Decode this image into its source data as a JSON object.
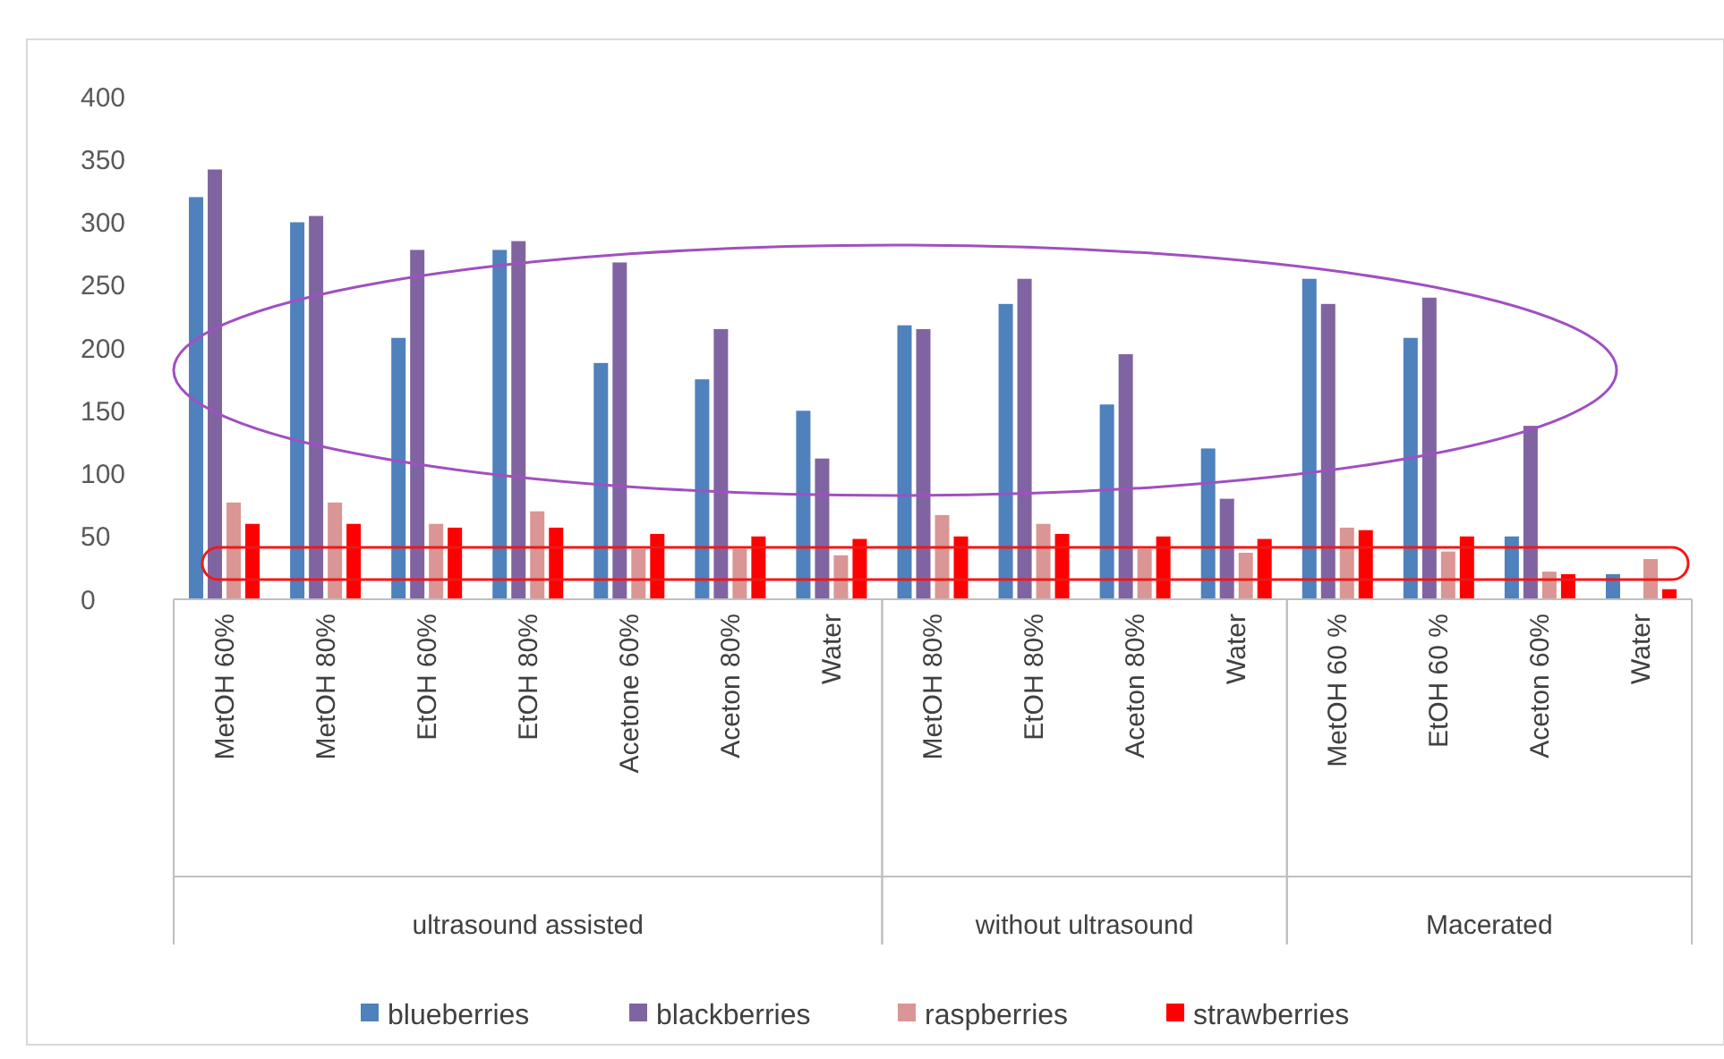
{
  "chart_data": [
    {
      "type": "bar",
      "xlabel": "ultrasound assisted",
      "categories": [
        "MetOH 60%",
        "MetOH 80%",
        "EtOH 60%",
        "EtOH 80%",
        "Acetone 60%",
        "Aceton 80%",
        "Water"
      ],
      "series": [
        {
          "name": "blueberries",
          "color": "#4f81bd",
          "values": [
            320,
            300,
            208,
            278,
            188,
            175,
            150
          ]
        },
        {
          "name": "blackberries",
          "color": "#8064a2",
          "values": [
            342,
            305,
            278,
            285,
            268,
            215,
            112
          ]
        },
        {
          "name": "raspberries",
          "color": "#d99694",
          "values": [
            77,
            77,
            60,
            70,
            40,
            40,
            35
          ]
        },
        {
          "name": "strawberries",
          "color": "#ff0000",
          "values": [
            60,
            60,
            57,
            57,
            52,
            50,
            48
          ]
        }
      ],
      "ylim": [
        0,
        400
      ],
      "yticks": [
        0,
        50,
        100,
        150,
        200,
        250,
        300,
        350,
        400
      ],
      "legend": "bottom"
    },
    {
      "type": "bar",
      "xlabel": "without ultrasound",
      "categories": [
        "MetOH 80%",
        "EtOH 80%",
        "Aceton 80%",
        "Water"
      ],
      "series": [
        {
          "color": "#4f81bd",
          "values": [
            218,
            235,
            155,
            120
          ]
        },
        {
          "color": "#8064a2",
          "values": [
            215,
            255,
            195,
            80
          ]
        },
        {
          "color": "#d99694",
          "values": [
            67,
            60,
            40,
            37
          ]
        },
        {
          "color": "#ff0000",
          "values": [
            50,
            52,
            50,
            48
          ]
        }
      ],
      "ylim": [
        0,
        400
      ],
      "tick_labels": "x"
    },
    {
      "type": "bar",
      "xlabel": "Macerated",
      "categories": [
        "MetOH 60 %",
        "EtOH 60 %",
        "Aceton 60%",
        "Water"
      ],
      "series": [
        {
          "color": "#4f81bd",
          "values": [
            255,
            208,
            50,
            20
          ]
        },
        {
          "color": "#8064a2",
          "values": [
            235,
            240,
            138,
            null
          ]
        },
        {
          "color": "#d99694",
          "values": [
            57,
            38,
            22,
            32
          ]
        },
        {
          "color": "#ff0000",
          "values": [
            55,
            50,
            20,
            8
          ]
        }
      ],
      "ylim": [
        0,
        400
      ],
      "tick_labels": "x"
    }
  ]
}
